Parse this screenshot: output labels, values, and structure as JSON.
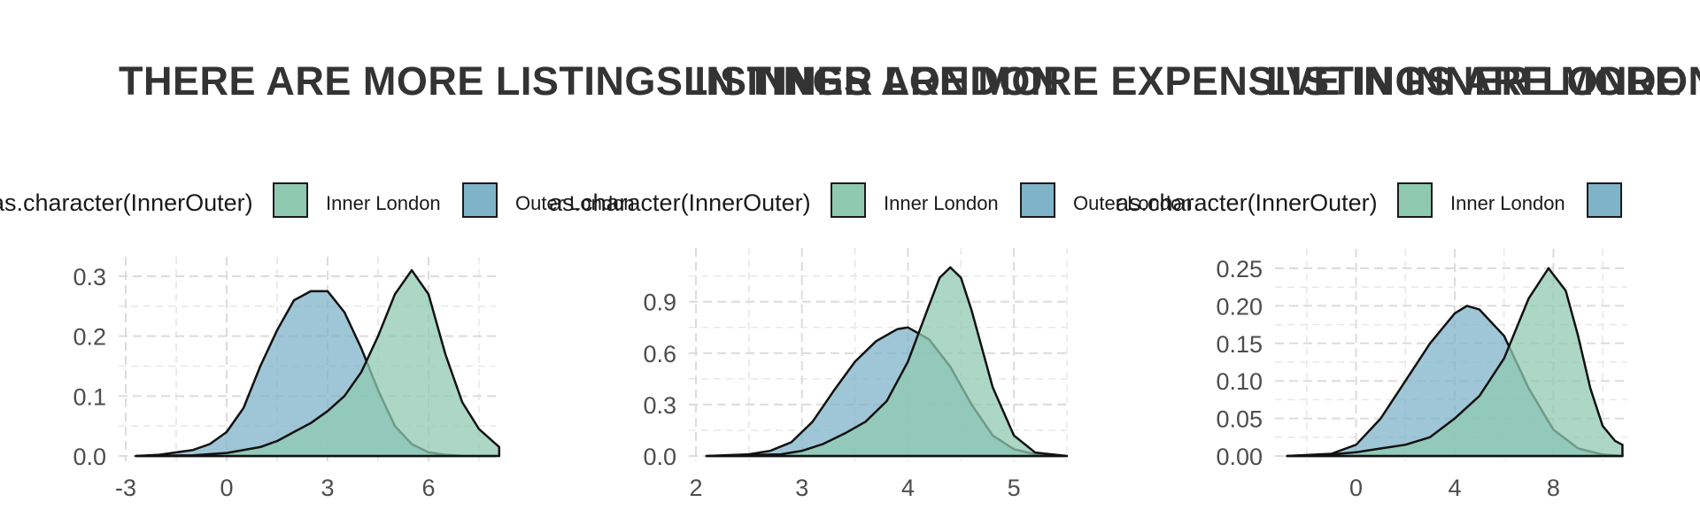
{
  "legend": {
    "title": "as.character(InnerOuter)",
    "items": [
      {
        "label": "Inner London",
        "color": "#8fc9b0"
      },
      {
        "label": "Outer London",
        "color": "#7fb3c8"
      }
    ]
  },
  "panels": [
    {
      "title": "THERE ARE MORE LISTINGS IN INNER LONDON"
    },
    {
      "title": "LISTINGS ARE MORE EXPENSIVE IN INNER LONDON"
    },
    {
      "title": "LISTINGS ARE MORE"
    }
  ],
  "chart_data": [
    {
      "type": "area",
      "subtype": "density",
      "title": "THERE ARE MORE LISTINGS IN INNER LONDON",
      "xlabel": "",
      "ylabel": "",
      "xlim": [
        -3,
        8
      ],
      "ylim": [
        0,
        0.3
      ],
      "xticks": [
        -3,
        0,
        3,
        6
      ],
      "xtick_labels": [
        "-3",
        "0",
        "3",
        "6"
      ],
      "yticks": [
        0,
        0.1,
        0.2,
        0.3
      ],
      "ytick_labels": [
        "0.0",
        "0.1",
        "0.2",
        "0.3"
      ],
      "grid": true,
      "legend_position": "top",
      "series": [
        {
          "name": "Outer London",
          "color": "#7fb3c8",
          "x": [
            -2.7,
            -2,
            -1,
            -0.5,
            0,
            0.5,
            1,
            1.5,
            2,
            2.5,
            3,
            3.5,
            4,
            4.5,
            5,
            5.5,
            6,
            6.5,
            7,
            7.5,
            8
          ],
          "y": [
            0,
            0.002,
            0.01,
            0.02,
            0.04,
            0.08,
            0.15,
            0.21,
            0.26,
            0.275,
            0.275,
            0.24,
            0.18,
            0.11,
            0.05,
            0.02,
            0.006,
            0.002,
            0.0005,
            0,
            0
          ]
        },
        {
          "name": "Inner London",
          "color": "#8fc9b0",
          "x": [
            -2.7,
            -1,
            0,
            1,
            1.5,
            2,
            2.5,
            3,
            3.5,
            4,
            4.5,
            5,
            5.5,
            6,
            6.5,
            7,
            7.5,
            8,
            8.1
          ],
          "y": [
            0,
            0.001,
            0.005,
            0.015,
            0.025,
            0.04,
            0.055,
            0.075,
            0.1,
            0.14,
            0.2,
            0.27,
            0.31,
            0.27,
            0.17,
            0.09,
            0.045,
            0.02,
            0.015
          ]
        }
      ]
    },
    {
      "type": "area",
      "subtype": "density",
      "title": "LISTINGS ARE MORE EXPENSIVE IN INNER LONDON",
      "xlabel": "",
      "ylabel": "",
      "xlim": [
        2,
        5.5
      ],
      "ylim": [
        0,
        1.1
      ],
      "xticks": [
        2,
        3,
        4,
        5
      ],
      "xtick_labels": [
        "2",
        "3",
        "4",
        "5"
      ],
      "yticks": [
        0,
        0.3,
        0.6,
        0.9
      ],
      "ytick_labels": [
        "0.0",
        "0.3",
        "0.6",
        "0.9"
      ],
      "grid": true,
      "legend_position": "top",
      "series": [
        {
          "name": "Outer London",
          "color": "#7fb3c8",
          "x": [
            2.1,
            2.5,
            2.7,
            2.9,
            3.1,
            3.3,
            3.5,
            3.7,
            3.9,
            4.0,
            4.2,
            4.4,
            4.6,
            4.8,
            5.0,
            5.2,
            5.5
          ],
          "y": [
            0,
            0.01,
            0.03,
            0.08,
            0.2,
            0.38,
            0.55,
            0.67,
            0.74,
            0.75,
            0.68,
            0.52,
            0.3,
            0.12,
            0.04,
            0.01,
            0
          ]
        },
        {
          "name": "Inner London",
          "color": "#8fc9b0",
          "x": [
            2.1,
            2.8,
            3.0,
            3.2,
            3.4,
            3.6,
            3.8,
            4.0,
            4.2,
            4.3,
            4.4,
            4.5,
            4.6,
            4.8,
            5.0,
            5.2,
            5.5
          ],
          "y": [
            0,
            0.01,
            0.03,
            0.07,
            0.13,
            0.2,
            0.32,
            0.55,
            0.88,
            1.04,
            1.1,
            1.04,
            0.85,
            0.4,
            0.12,
            0.02,
            0
          ]
        }
      ]
    },
    {
      "type": "area",
      "subtype": "density",
      "title": "LISTINGS ARE MORE",
      "xlabel": "",
      "ylabel": "",
      "xlim": [
        -3,
        11
      ],
      "ylim": [
        0,
        0.25
      ],
      "xticks": [
        0,
        4,
        8
      ],
      "xtick_labels": [
        "0",
        "4",
        "8"
      ],
      "yticks": [
        0,
        0.05,
        0.1,
        0.15,
        0.2,
        0.25
      ],
      "ytick_labels": [
        "0.00",
        "0.05",
        "0.10",
        "0.15",
        "0.20",
        "0.25"
      ],
      "grid": true,
      "legend_position": "top",
      "series": [
        {
          "name": "Outer London",
          "color": "#7fb3c8",
          "x": [
            -2.8,
            -1,
            0,
            1,
            2,
            3,
            4,
            4.5,
            5,
            6,
            7,
            8,
            9,
            10,
            10.8
          ],
          "y": [
            0,
            0.003,
            0.015,
            0.05,
            0.1,
            0.15,
            0.19,
            0.2,
            0.195,
            0.16,
            0.09,
            0.035,
            0.01,
            0.002,
            0
          ]
        },
        {
          "name": "Inner London",
          "color": "#8fc9b0",
          "x": [
            -2.8,
            -1,
            0,
            1,
            2,
            3,
            4,
            5,
            6,
            7,
            7.8,
            8.5,
            9,
            9.5,
            10,
            10.5,
            10.8
          ],
          "y": [
            0,
            0.002,
            0.005,
            0.01,
            0.015,
            0.025,
            0.05,
            0.08,
            0.13,
            0.21,
            0.25,
            0.22,
            0.16,
            0.09,
            0.04,
            0.02,
            0.015
          ]
        }
      ]
    }
  ]
}
